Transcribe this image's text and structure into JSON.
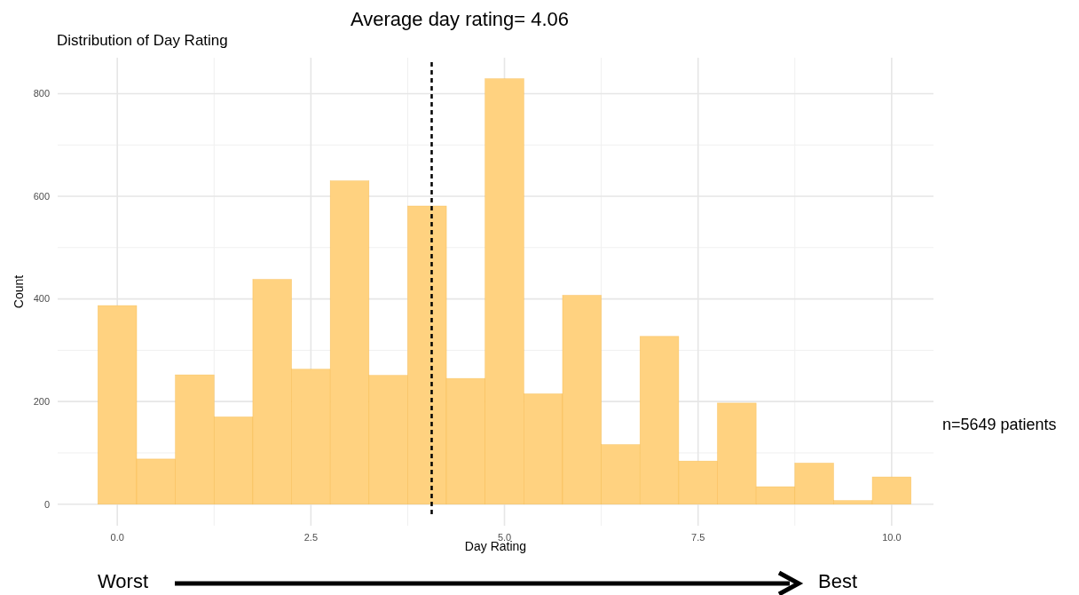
{
  "chart_data": {
    "type": "histogram",
    "title": "Distribution of Day Rating",
    "xlabel": "Day Rating",
    "ylabel": "Count",
    "bins": [
      -0.25,
      0.25,
      0.75,
      1.25,
      1.75,
      2.25,
      2.75,
      3.25,
      3.75,
      4.25,
      4.75,
      5.25,
      5.75,
      6.25,
      6.75,
      7.25,
      7.75,
      8.25,
      8.75,
      9.25,
      9.75,
      10.25
    ],
    "values": [
      387,
      88,
      252,
      170,
      438,
      263,
      630,
      251,
      581,
      245,
      829,
      215,
      407,
      116,
      327,
      84,
      197,
      34,
      80,
      7,
      53
    ],
    "color": "#ffd280",
    "xlim": [
      -0.77,
      10.54
    ],
    "xticks": [
      {
        "value": 0,
        "label": "0.0"
      },
      2.5,
      {
        "value": 5,
        "label": "5.0"
      },
      7.5,
      {
        "value": 10,
        "label": "10.0"
      }
    ],
    "ylim": [
      -42,
      870
    ],
    "yticks": [
      0,
      200,
      400,
      600,
      800
    ],
    "grid": true,
    "ref_lines": [
      {
        "axis": "x",
        "value": 4.06,
        "label": "Average day rating= 4.06",
        "color": "#000000",
        "line_style": "dashed"
      }
    ],
    "annotations": [
      "n=5649 patients",
      "Worst",
      "Best"
    ]
  }
}
